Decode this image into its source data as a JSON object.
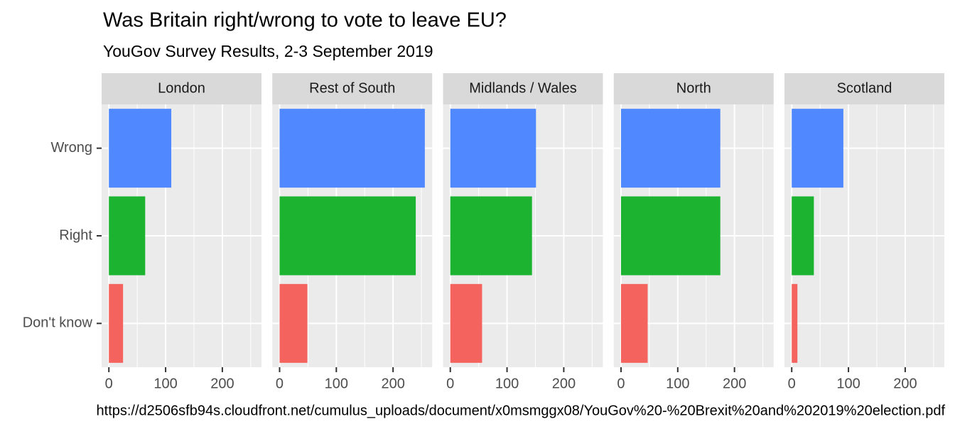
{
  "chart_data": {
    "type": "bar",
    "orientation": "horizontal",
    "title": "Was Britain right/wrong to vote to leave EU?",
    "subtitle": "YouGov Survey Results, 2-3 September 2019",
    "caption": "https://d2506sfb94s.cloudfront.net/cumulus_uploads/document/x0msmggx08/YouGov%20-%20Brexit%20and%202019%20election.pdf",
    "categories": [
      "Wrong",
      "Right",
      "Don't know"
    ],
    "colors": [
      "#4f88ff",
      "#1bb32f",
      "#f5635f"
    ],
    "xlim": [
      -12.8,
      269
    ],
    "xticks": [
      0,
      100,
      200
    ],
    "minor_xticks": [
      50,
      150,
      250
    ],
    "grid": true,
    "panels": [
      {
        "name": "London",
        "values": [
          110,
          64,
          25
        ]
      },
      {
        "name": "Rest of South",
        "values": [
          256,
          240,
          49
        ]
      },
      {
        "name": "Midlands / Wales",
        "values": [
          151,
          144,
          56
        ]
      },
      {
        "name": "North",
        "values": [
          175,
          175,
          47
        ]
      },
      {
        "name": "Scotland",
        "values": [
          91,
          39,
          10
        ]
      }
    ]
  }
}
